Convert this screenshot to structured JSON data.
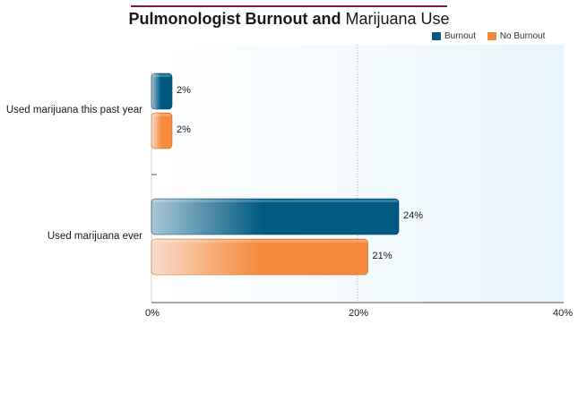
{
  "chart_data": {
    "type": "bar",
    "orientation": "horizontal",
    "title_parts": [
      {
        "text": "Pulmonologist Burnout",
        "bold": true
      },
      {
        "text": " and ",
        "bold": true
      },
      {
        "text": "Marijuana Use",
        "bold": false
      }
    ],
    "categories": [
      "Used marijuana this past year",
      "Used marijuana ever"
    ],
    "series": [
      {
        "name": "Burnout",
        "values": [
          2,
          24
        ],
        "labels": [
          "2%",
          "24%"
        ],
        "color": "#005a80"
      },
      {
        "name": "No Burnout",
        "values": [
          2,
          21
        ],
        "labels": [
          "2%",
          "21%"
        ],
        "color": "#f58a3c"
      }
    ],
    "xlim": [
      0,
      40
    ],
    "xticks": [
      0,
      20,
      40
    ],
    "xtick_labels": [
      "0%",
      "20%",
      "40%"
    ],
    "grid": "vertical dotted at 20%",
    "legend_position": "top-right"
  }
}
